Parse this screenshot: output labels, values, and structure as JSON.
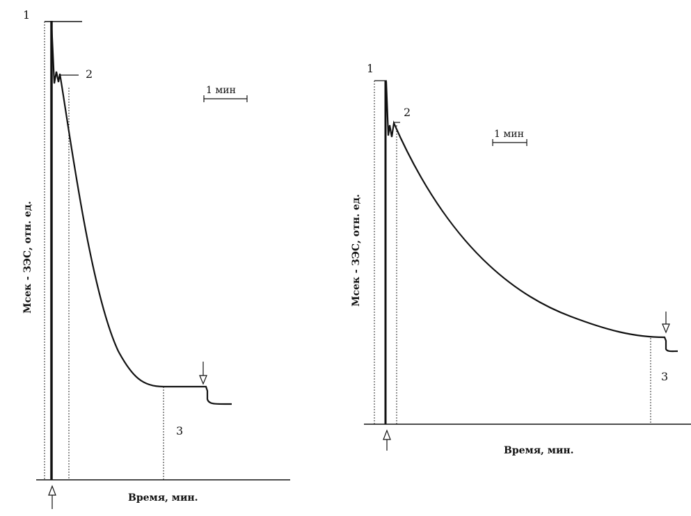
{
  "chart_data": [
    {
      "type": "line",
      "title": "",
      "xlabel": "Время, мин.",
      "ylabel": "Мсек - ЗЭС, отн. ед.",
      "scale_bar_label": "1 мин",
      "markers": [
        "1",
        "2",
        "3"
      ],
      "arrows": [
        "start-up-arrow",
        "stop-down-arrow"
      ],
      "series": [
        {
          "values": [
            1,
            1,
            0.7,
            0.5,
            0.35,
            0.25,
            0.2,
            0.2,
            0.15
          ]
        }
      ]
    },
    {
      "type": "line",
      "title": "",
      "xlabel": "Время, мин.",
      "ylabel": "Мсек - ЗЭС, отн. ед.",
      "scale_bar_label": "1 мин",
      "markers": [
        "1",
        "2",
        "3"
      ],
      "arrows": [
        "start-up-arrow",
        "stop-down-arrow"
      ],
      "series": [
        {
          "values": [
            1,
            1,
            0.7,
            0.5,
            0.35,
            0.25,
            0.2,
            0.2,
            0.15
          ]
        }
      ]
    }
  ]
}
